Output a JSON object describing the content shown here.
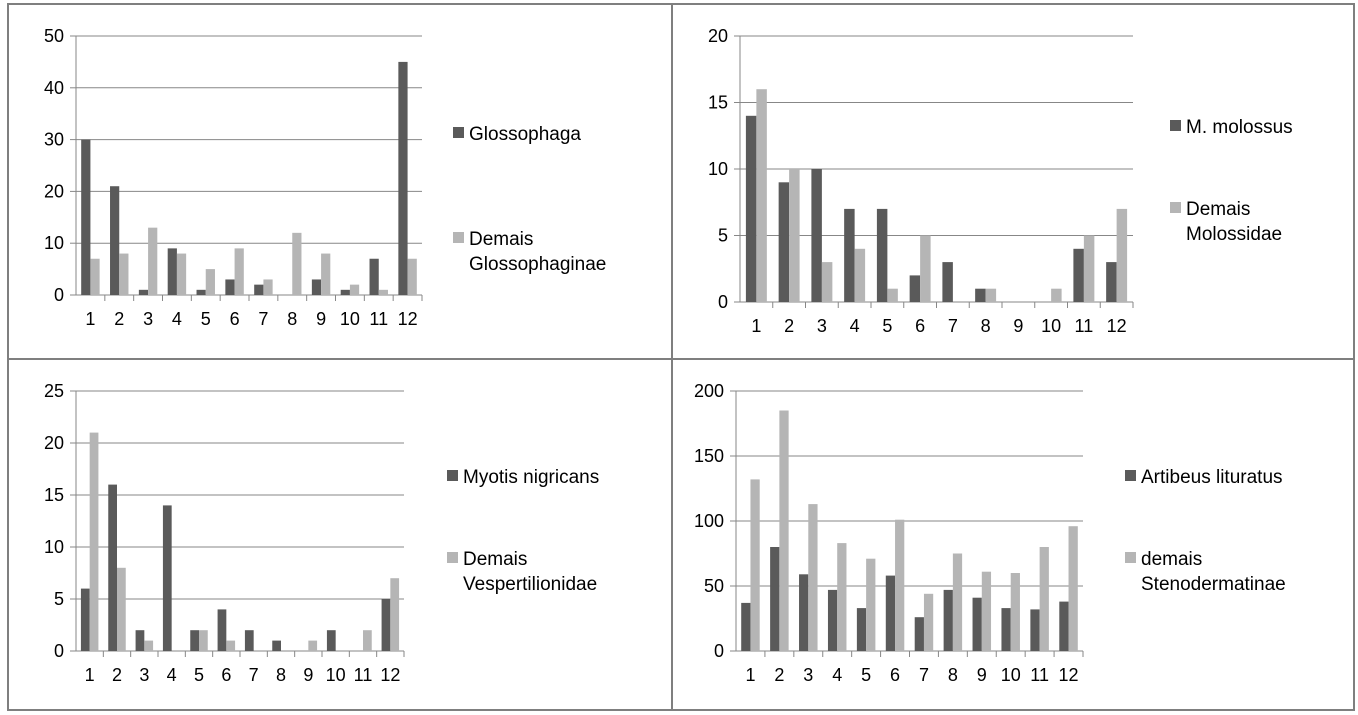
{
  "colors": {
    "series_dark": "#5a5a5a",
    "series_light": "#b5b5b5",
    "grid": "#878787",
    "border": "#7f7f7f"
  },
  "chart_data": [
    {
      "type": "bar",
      "categories": [
        "1",
        "2",
        "3",
        "4",
        "5",
        "6",
        "7",
        "8",
        "9",
        "10",
        "11",
        "12"
      ],
      "series": [
        {
          "name": "Glossophaga",
          "values": [
            30,
            21,
            1,
            9,
            1,
            3,
            2,
            0,
            3,
            1,
            7,
            45
          ],
          "legend_lines": [
            "Glossophaga"
          ]
        },
        {
          "name": "Demais Glossophaginae",
          "values": [
            7,
            8,
            13,
            8,
            5,
            9,
            3,
            12,
            8,
            2,
            1,
            7
          ],
          "legend_lines": [
            "Demais",
            "Glossophaginae"
          ]
        }
      ],
      "ylim": [
        0,
        50
      ],
      "yticks": [
        0,
        10,
        20,
        30,
        40,
        50
      ],
      "grid": true,
      "legend": "right"
    },
    {
      "type": "bar",
      "categories": [
        "1",
        "2",
        "3",
        "4",
        "5",
        "6",
        "7",
        "8",
        "9",
        "10",
        "11",
        "12"
      ],
      "series": [
        {
          "name": "M. molossus",
          "values": [
            14,
            9,
            10,
            7,
            7,
            2,
            3,
            1,
            0,
            0,
            4,
            3
          ],
          "legend_lines": [
            "M. molossus"
          ]
        },
        {
          "name": "Demais Molossidae",
          "values": [
            16,
            10,
            3,
            4,
            1,
            5,
            0,
            1,
            0,
            1,
            5,
            7
          ],
          "legend_lines": [
            "Demais",
            "Molossidae"
          ]
        }
      ],
      "ylim": [
        0,
        20
      ],
      "yticks": [
        0,
        5,
        10,
        15,
        20
      ],
      "grid": true,
      "legend": "right"
    },
    {
      "type": "bar",
      "categories": [
        "1",
        "2",
        "3",
        "4",
        "5",
        "6",
        "7",
        "8",
        "9",
        "10",
        "11",
        "12"
      ],
      "series": [
        {
          "name": "Myotis nigricans",
          "values": [
            6,
            16,
            2,
            14,
            2,
            4,
            2,
            1,
            0,
            2,
            0,
            5
          ],
          "legend_lines": [
            "Myotis nigricans"
          ]
        },
        {
          "name": "Demais Vespertilionidae",
          "values": [
            21,
            8,
            1,
            0,
            2,
            1,
            0,
            0,
            1,
            0,
            2,
            7
          ],
          "legend_lines": [
            "Demais",
            "Vespertilionidae"
          ]
        }
      ],
      "ylim": [
        0,
        25
      ],
      "yticks": [
        0,
        5,
        10,
        15,
        20,
        25
      ],
      "grid": true,
      "legend": "right"
    },
    {
      "type": "bar",
      "categories": [
        "1",
        "2",
        "3",
        "4",
        "5",
        "6",
        "7",
        "8",
        "9",
        "10",
        "11",
        "12"
      ],
      "series": [
        {
          "name": "Artibeus lituratus",
          "values": [
            37,
            80,
            59,
            47,
            33,
            58,
            26,
            47,
            41,
            33,
            32,
            38
          ],
          "legend_lines": [
            "Artibeus lituratus"
          ]
        },
        {
          "name": "demais Stenodermatinae",
          "values": [
            132,
            185,
            113,
            83,
            71,
            101,
            44,
            75,
            61,
            60,
            80,
            96
          ],
          "legend_lines": [
            "demais",
            "Stenodermatinae"
          ]
        }
      ],
      "ylim": [
        0,
        200
      ],
      "yticks": [
        0,
        50,
        100,
        150,
        200
      ],
      "grid": true,
      "legend": "right"
    }
  ]
}
